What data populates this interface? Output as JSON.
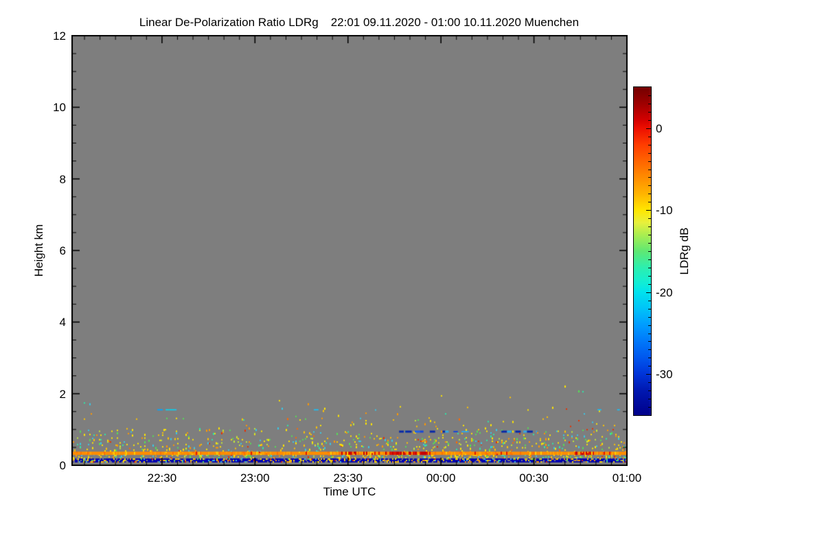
{
  "title": {
    "main": "Linear De-Polarization Ratio LDRg",
    "period": "22:01 09.11.2020 - 01:00 10.11.2020 Muenchen"
  },
  "axes": {
    "x": {
      "title": "Time UTC",
      "start_clock": "22:01",
      "end_clock": "01:00",
      "range_min": 179,
      "minor_tick_step_min": 5,
      "ticks": [
        {
          "label": "22:30",
          "min": 29
        },
        {
          "label": "23:00",
          "min": 59
        },
        {
          "label": "23:30",
          "min": 89
        },
        {
          "label": "00:00",
          "min": 119
        },
        {
          "label": "00:30",
          "min": 149
        },
        {
          "label": "01:00",
          "min": 179
        }
      ]
    },
    "y": {
      "title": "Height km",
      "range_km": [
        0,
        12
      ],
      "minor_tick_step_km": 0.5,
      "ticks": [
        {
          "label": "0",
          "km": 0
        },
        {
          "label": "2",
          "km": 2
        },
        {
          "label": "4",
          "km": 4
        },
        {
          "label": "6",
          "km": 6
        },
        {
          "label": "8",
          "km": 8
        },
        {
          "label": "10",
          "km": 10
        },
        {
          "label": "12",
          "km": 12
        }
      ]
    }
  },
  "colorbar": {
    "title": "LDRg dB",
    "max_db": 5,
    "min_db": -35,
    "minor_tick_step_db": 1,
    "ticks": [
      {
        "label": "0",
        "db": 0
      },
      {
        "label": "-10",
        "db": -10
      },
      {
        "label": "-20",
        "db": -20
      },
      {
        "label": "-30",
        "db": -30
      }
    ],
    "gradient": [
      {
        "v": 5,
        "c": "#730000"
      },
      {
        "v": 3,
        "c": "#9E0000"
      },
      {
        "v": 1,
        "c": "#D40000"
      },
      {
        "v": 0,
        "c": "#EC0F00"
      },
      {
        "v": -2,
        "c": "#FF3C00"
      },
      {
        "v": -4,
        "c": "#FF6400"
      },
      {
        "v": -6,
        "c": "#FF8C00"
      },
      {
        "v": -8,
        "c": "#FFB400"
      },
      {
        "v": -10,
        "c": "#FFE600"
      },
      {
        "v": -11.5,
        "c": "#E8F03C"
      },
      {
        "v": -13,
        "c": "#AAEE50"
      },
      {
        "v": -15,
        "c": "#5FE873"
      },
      {
        "v": -17,
        "c": "#2CEFAF"
      },
      {
        "v": -19,
        "c": "#0FEDD8"
      },
      {
        "v": -20,
        "c": "#00E2EE"
      },
      {
        "v": -22,
        "c": "#00C3F8"
      },
      {
        "v": -24,
        "c": "#009CFF"
      },
      {
        "v": -26,
        "c": "#0078FA"
      },
      {
        "v": -28,
        "c": "#0057EE"
      },
      {
        "v": -30,
        "c": "#0034D8"
      },
      {
        "v": -32,
        "c": "#0018B0"
      },
      {
        "v": -35,
        "c": "#00008B"
      }
    ]
  },
  "chart_data": {
    "type": "heatmap",
    "title": "Linear De-Polarization Ratio LDRg  22:01 09.11.2020 - 01:00 10.11.2020 Muenchen",
    "xlabel": "Time UTC",
    "ylabel": "Height km",
    "x_range_clock": [
      "22:01",
      "01:00"
    ],
    "y_range_km": [
      0,
      12
    ],
    "value_range_db": [
      -35,
      5
    ],
    "no_data_color": "#7E7E7E",
    "grid": false,
    "features": {
      "orange_band": {
        "km": [
          0.29,
          0.38
        ],
        "base_color": "#FF8C00",
        "alt_colors": [
          {
            "c": "#FFA300",
            "p": 0.14
          },
          {
            "c": "#FF7000",
            "p": 0.1
          },
          {
            "c": "#FFD000",
            "p": 0.05
          },
          {
            "c": "#E01400",
            "p": 0.03
          }
        ],
        "red_color": "#E01400",
        "red_color2": "#C80000",
        "red_segments_min": [
          [
            86,
            114
          ],
          [
            162,
            168
          ],
          [
            171,
            174
          ]
        ],
        "red_p": 0.55
      },
      "surface_band": {
        "km": [
          0.08,
          0.19
        ],
        "base_color": "#0000B4",
        "mix": [
          {
            "c": "#7E7E7E",
            "p": 0.12
          },
          {
            "c": "#FFE000",
            "p": 0.09
          },
          {
            "c": "#FF9800",
            "p": 0.06
          },
          {
            "c": "#38C0E8",
            "p": 0.04
          },
          {
            "c": "#E02000",
            "p": 0.02
          },
          {
            "c": "#55E055",
            "p": 0.02
          }
        ]
      },
      "speckle": {
        "seed": 1337,
        "cell_km": 0.045,
        "palette": [
          {
            "c": "#FFE600",
            "w": 0.3
          },
          {
            "c": "#FFC400",
            "w": 0.12
          },
          {
            "c": "#FF9800",
            "w": 0.12
          },
          {
            "c": "#BFE838",
            "w": 0.1
          },
          {
            "c": "#55E055",
            "w": 0.1
          },
          {
            "c": "#2EE8A8",
            "w": 0.06
          },
          {
            "c": "#38C8E8",
            "w": 0.12
          },
          {
            "c": "#E83000",
            "w": 0.05
          },
          {
            "c": "#FF6A00",
            "w": 0.03
          }
        ],
        "zones": [
          {
            "km": [
              0.19,
              0.29
            ],
            "p": 0.22
          },
          {
            "km": [
              0.38,
              0.75
            ],
            "p": 0.1
          },
          {
            "km": [
              0.75,
              1.02
            ],
            "p": 0.055
          },
          {
            "km": [
              1.02,
              1.3
            ],
            "p": 0.022
          },
          {
            "km": [
              1.3,
              1.65
            ],
            "p": 0.007
          },
          {
            "km": [
              1.65,
              2.3
            ],
            "p": 0.0015
          }
        ]
      },
      "streaks": [
        {
          "min": [
            27.5,
            33.7
          ],
          "km": 1.55,
          "h": 2,
          "colors": [
            "#28B8E8",
            "#10A0F0",
            "#18C8E0"
          ]
        },
        {
          "min": [
            78.0,
            79.5
          ],
          "km": 1.55,
          "h": 2,
          "colors": [
            "#28B8E8"
          ]
        },
        {
          "min": [
            169.5,
            177.5
          ],
          "km": 1.55,
          "h": 2,
          "colors": [
            "#28B8E8",
            "#18C8E0"
          ]
        },
        {
          "min": [
            105.5,
            121.5
          ],
          "km": 0.94,
          "h": 3,
          "colors": [
            "#1848D8",
            "#2060E8",
            "#30A8E8",
            "#0828A8"
          ]
        },
        {
          "min": [
            123.0,
            128.0
          ],
          "km": 0.94,
          "h": 2,
          "colors": [
            "#1848D8",
            "#30A8E8"
          ]
        },
        {
          "min": [
            138.5,
            150.0
          ],
          "km": 0.94,
          "h": 3,
          "colors": [
            "#1848D8",
            "#2060E8",
            "#0828A8",
            "#30A8E8"
          ]
        }
      ]
    }
  }
}
